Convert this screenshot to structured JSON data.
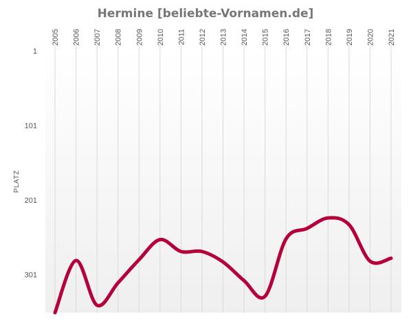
{
  "chart_data": {
    "type": "line",
    "title": "Hermine [beliebte-Vornamen.de]",
    "ylabel": "PLATZ",
    "y_reversed": true,
    "ylim": [
      1,
      352
    ],
    "yticks": [
      1,
      101,
      201,
      301
    ],
    "x": [
      "2005",
      "2006",
      "2007",
      "2008",
      "2009",
      "2010",
      "2011",
      "2012",
      "2013",
      "2014",
      "2015",
      "2016",
      "2017",
      "2018",
      "2019",
      "2020",
      "2021"
    ],
    "series": [
      {
        "values": [
          352,
          282,
          342,
          312,
          281,
          254,
          270,
          270,
          284,
          309,
          330,
          253,
          239,
          225,
          234,
          283,
          279
        ]
      }
    ],
    "line_color": "#b5003a",
    "grid": "vertical",
    "legend": "none"
  }
}
